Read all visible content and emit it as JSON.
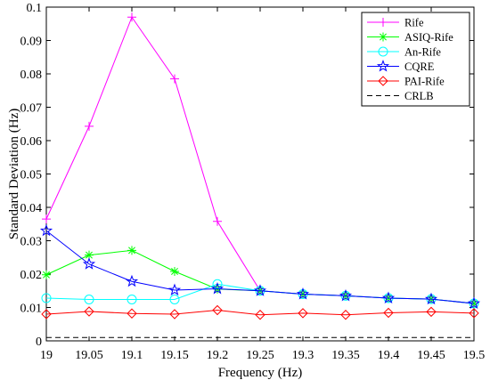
{
  "chart_data": {
    "type": "line",
    "xlabel": "Frequency (Hz)",
    "ylabel": "Standard Deviation (Hz)",
    "xlim": [
      19,
      19.5
    ],
    "ylim": [
      0,
      0.1
    ],
    "x_ticks": [
      19,
      19.05,
      19.1,
      19.15,
      19.2,
      19.25,
      19.3,
      19.35,
      19.4,
      19.45,
      19.5
    ],
    "x_tick_labels": [
      "19",
      "19.05",
      "19.1",
      "19.15",
      "19.2",
      "19.25",
      "19.3",
      "19.35",
      "19.4",
      "19.45",
      "19.5"
    ],
    "y_ticks": [
      0,
      0.01,
      0.02,
      0.03,
      0.04,
      0.05,
      0.06,
      0.07,
      0.08,
      0.09,
      0.1
    ],
    "y_tick_labels": [
      "0",
      "0.01",
      "0.02",
      "0.03",
      "0.04",
      "0.05",
      "0.06",
      "0.07",
      "0.08",
      "0.09",
      "0.1"
    ],
    "grid": false,
    "legend_position": "top-right",
    "x": [
      19,
      19.05,
      19.1,
      19.15,
      19.2,
      19.25,
      19.3,
      19.35,
      19.4,
      19.45,
      19.5
    ],
    "series": [
      {
        "name": "Rife",
        "color": "#ff00ff",
        "marker": "plus",
        "dash": "solid",
        "values": [
          0.0365,
          0.0643,
          0.097,
          0.0785,
          0.0358,
          0.015,
          0.014,
          0.0135,
          0.0128,
          0.0125,
          0.0112
        ]
      },
      {
        "name": "ASIQ-Rife",
        "color": "#00ff00",
        "marker": "asterisk",
        "dash": "solid",
        "values": [
          0.0198,
          0.0257,
          0.0271,
          0.0208,
          0.0155,
          0.015,
          0.014,
          0.0135,
          0.0128,
          0.0125,
          0.0112
        ]
      },
      {
        "name": "An-Rife",
        "color": "#00ffff",
        "marker": "circle",
        "dash": "solid",
        "values": [
          0.0128,
          0.0124,
          0.0124,
          0.0124,
          0.017,
          0.015,
          0.014,
          0.0135,
          0.0128,
          0.0125,
          0.0112
        ]
      },
      {
        "name": "CQRE",
        "color": "#0000ff",
        "marker": "star",
        "dash": "solid",
        "values": [
          0.033,
          0.023,
          0.0178,
          0.0152,
          0.0156,
          0.015,
          0.014,
          0.0135,
          0.0128,
          0.0125,
          0.0112
        ]
      },
      {
        "name": "PAI-Rife",
        "color": "#ff0000",
        "marker": "diamond",
        "dash": "solid",
        "values": [
          0.008,
          0.0088,
          0.0082,
          0.008,
          0.0092,
          0.0078,
          0.0083,
          0.0078,
          0.0084,
          0.0087,
          0.0083
        ]
      },
      {
        "name": "CRLB",
        "color": "#000000",
        "marker": "none",
        "dash": "dashed",
        "values": [
          0.001,
          0.001,
          0.001,
          0.001,
          0.001,
          0.001,
          0.001,
          0.001,
          0.001,
          0.001,
          0.001
        ]
      }
    ]
  }
}
